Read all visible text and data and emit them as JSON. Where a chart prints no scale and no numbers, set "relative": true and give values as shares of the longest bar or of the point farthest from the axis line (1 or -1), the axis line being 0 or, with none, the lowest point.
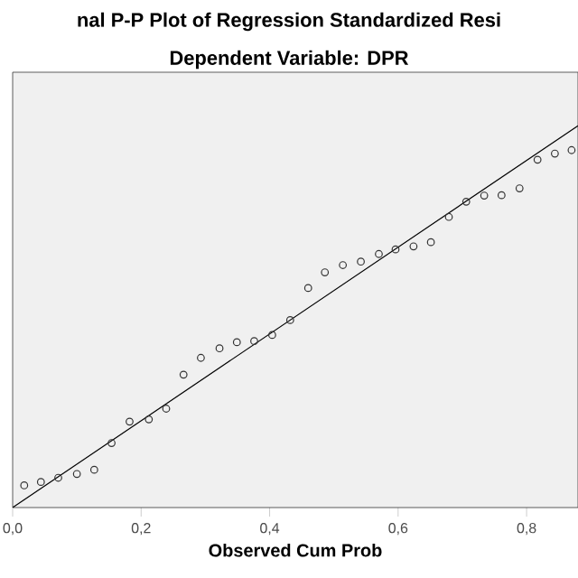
{
  "chart_data": {
    "type": "scatter",
    "title": "nal P-P Plot of Regression Standardized Resi",
    "subtitle": "Dependent Variable: DPR",
    "xlabel": "Observed Cum Prob",
    "xlim": [
      0,
      0.88
    ],
    "relative": true,
    "xticks": [
      {
        "value": 0,
        "label": "0,0"
      },
      {
        "value": 0.2,
        "label": "0,2"
      },
      {
        "value": 0.4,
        "label": "0,4"
      },
      {
        "value": 0.6,
        "label": "0,6"
      },
      {
        "value": 0.8,
        "label": "0,8"
      }
    ],
    "series": [
      {
        "color": "#333333",
        "marker": "circle",
        "x": [
          0.018,
          0.044,
          0.071,
          0.1,
          0.127,
          0.154,
          0.182,
          0.212,
          0.239,
          0.266,
          0.293,
          0.322,
          0.349,
          0.376,
          0.404,
          0.432,
          0.46,
          0.486,
          0.514,
          0.542,
          0.57,
          0.596,
          0.624,
          0.651,
          0.679,
          0.706,
          0.734,
          0.761,
          0.789,
          0.817,
          0.844,
          0.87
        ],
        "values": [
          0.058,
          0.067,
          0.078,
          0.088,
          0.099,
          0.169,
          0.225,
          0.231,
          0.259,
          0.348,
          0.392,
          0.417,
          0.433,
          0.436,
          0.452,
          0.491,
          0.575,
          0.616,
          0.635,
          0.644,
          0.664,
          0.676,
          0.684,
          0.695,
          0.761,
          0.801,
          0.817,
          0.818,
          0.836,
          0.911,
          0.927,
          0.936
        ]
      },
      {
        "type": "line",
        "color": "#000000",
        "x": [
          0,
          0.88
        ],
        "values": [
          0,
          1
        ]
      }
    ]
  }
}
